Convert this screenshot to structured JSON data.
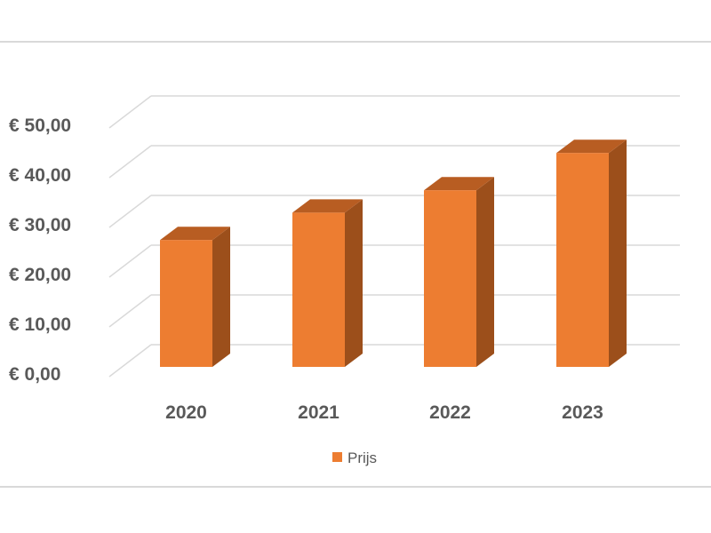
{
  "chart_data": {
    "type": "bar",
    "categories": [
      "2020",
      "2021",
      "2022",
      "2023"
    ],
    "series": [
      {
        "name": "Prijs",
        "values": [
          25.5,
          31,
          35.5,
          43
        ]
      }
    ],
    "ylim": [
      0,
      50
    ],
    "yticks": [
      0,
      10,
      20,
      30,
      40,
      50
    ],
    "ytick_labels": [
      "€ 0,00",
      "€ 10,00",
      "€ 20,00",
      "€ 30,00",
      "€ 40,00",
      "€ 50,00"
    ],
    "grid": true,
    "style": "3d-column",
    "legend_position": "bottom",
    "colors": {
      "bar_front": "#ed7d31",
      "bar_side": "#9c4f1b",
      "bar_top": "#b85d22",
      "grid": "#d9d9d9",
      "text": "#595959"
    }
  }
}
